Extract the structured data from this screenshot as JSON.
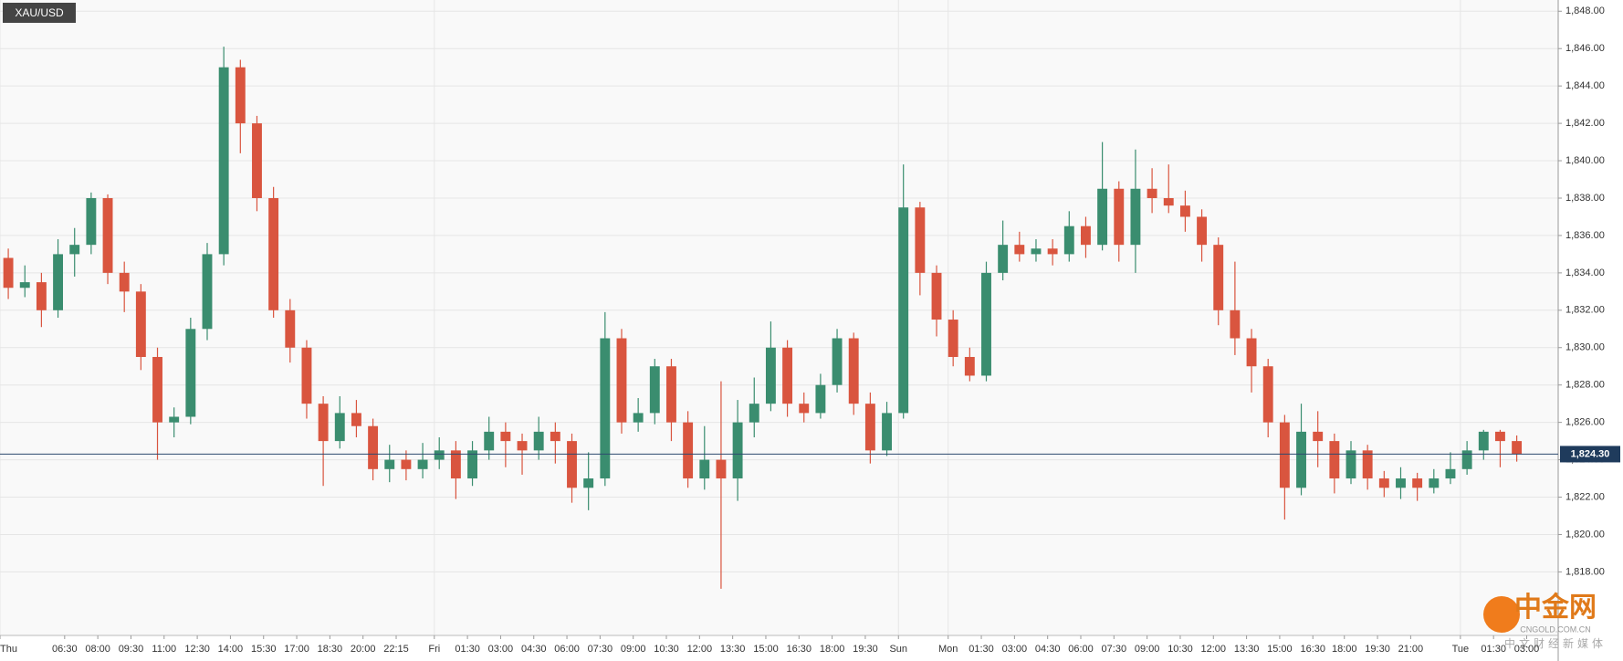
{
  "chart_data": {
    "type": "candlestick",
    "title": "XAU/USD",
    "up_color": "#3a8d6f",
    "down_color": "#d9553f",
    "open": [
      1834.8,
      1833.2,
      1833.5,
      1832,
      1835,
      1835.5,
      1838,
      1834,
      1833,
      1829.5,
      1826,
      1826.3,
      1831,
      1835,
      1845,
      1842,
      1838,
      1832,
      1830,
      1827,
      1825,
      1826.5,
      1825.8,
      1823.5,
      1824,
      1823.5,
      1824,
      1824.5,
      1823,
      1824.5,
      1825.5,
      1825,
      1824.5,
      1825.5,
      1825,
      1822.5,
      1823,
      1830.5,
      1826,
      1826.5,
      1829,
      1826,
      1823,
      1824,
      1823,
      1826,
      1827,
      1830,
      1827,
      1826.5,
      1828,
      1830.5,
      1827,
      1824.5,
      1826.5,
      1837.5,
      1834,
      1831.5,
      1829.5,
      1828.5,
      1834,
      1835.5,
      1835,
      1835.3,
      1835,
      1836.5,
      1835.5,
      1838.5,
      1835.5,
      1838.5,
      1838,
      1837.6,
      1837,
      1835.5,
      1832,
      1830.5,
      1829,
      1826,
      1822.5,
      1825.5,
      1825,
      1823,
      1824.5,
      1823,
      1822.5,
      1823,
      1822.5,
      1823,
      1823.5,
      1824.5,
      1825.5,
      1825
    ],
    "high": [
      1835.3,
      1834.4,
      1834,
      1835.8,
      1836.4,
      1838.3,
      1838.2,
      1834.6,
      1833.4,
      1830,
      1826.8,
      1831.6,
      1835.6,
      1846.1,
      1845.4,
      1842.4,
      1838.6,
      1832.6,
      1830.4,
      1827.4,
      1827.4,
      1827.2,
      1826.2,
      1824.8,
      1824.5,
      1824.9,
      1825.2,
      1825,
      1825,
      1826.3,
      1826,
      1825.4,
      1826.3,
      1826,
      1825.4,
      1824.4,
      1831.9,
      1831,
      1827.3,
      1829.4,
      1829.4,
      1826.6,
      1825.8,
      1828.2,
      1827.2,
      1828.4,
      1831.4,
      1830.4,
      1827.6,
      1828.6,
      1831,
      1830.8,
      1827.6,
      1827.1,
      1839.8,
      1837.8,
      1834.4,
      1832,
      1830,
      1834.6,
      1836.8,
      1836.2,
      1835.8,
      1835.8,
      1837.3,
      1837,
      1841,
      1838.9,
      1840.6,
      1839.6,
      1839.8,
      1838.4,
      1837.4,
      1835.9,
      1834.6,
      1831,
      1829.4,
      1826.4,
      1827,
      1826.6,
      1825.4,
      1825,
      1824.8,
      1823.4,
      1823.6,
      1823.3,
      1823.5,
      1824.4,
      1825,
      1825.6,
      1825.6,
      1825.3
    ],
    "low": [
      1832.6,
      1832.7,
      1831.1,
      1831.6,
      1833.8,
      1835,
      1833.4,
      1831.9,
      1828.8,
      1824,
      1825.2,
      1825.9,
      1830.4,
      1834.4,
      1840.4,
      1837.3,
      1831.6,
      1829.2,
      1826.2,
      1822.6,
      1824.6,
      1825.2,
      1822.9,
      1822.8,
      1822.9,
      1823,
      1823.5,
      1821.9,
      1822.6,
      1824,
      1823.6,
      1823.2,
      1824,
      1823.8,
      1821.7,
      1821.3,
      1822.6,
      1825.4,
      1825.5,
      1825.9,
      1825,
      1822.5,
      1822.4,
      1817.1,
      1821.8,
      1825.2,
      1826.6,
      1826.3,
      1826,
      1826.2,
      1827.6,
      1826.4,
      1823.8,
      1824.2,
      1826.2,
      1832.8,
      1830.6,
      1829,
      1828.2,
      1828.2,
      1833.6,
      1834.6,
      1834.6,
      1834.4,
      1834.6,
      1834.8,
      1835.2,
      1834.6,
      1834,
      1837.2,
      1837.2,
      1836.2,
      1834.6,
      1831.2,
      1829.6,
      1827.6,
      1825.2,
      1820.8,
      1822.1,
      1823.6,
      1822.2,
      1822.7,
      1822.4,
      1822,
      1821.9,
      1821.8,
      1822.2,
      1822.7,
      1823.2,
      1824,
      1823.6,
      1823.9
    ],
    "close": [
      1833.2,
      1833.5,
      1832,
      1835,
      1835.5,
      1838,
      1834,
      1833,
      1829.5,
      1826,
      1826.3,
      1831,
      1835,
      1845,
      1842,
      1838,
      1832,
      1830,
      1827,
      1825,
      1826.5,
      1825.8,
      1823.5,
      1824,
      1823.5,
      1824,
      1824.5,
      1823,
      1824.5,
      1825.5,
      1825,
      1824.5,
      1825.5,
      1825,
      1822.5,
      1823,
      1830.5,
      1826,
      1826.5,
      1829,
      1826,
      1823,
      1824,
      1823,
      1826,
      1827,
      1830,
      1827,
      1826.5,
      1828,
      1830.5,
      1827,
      1824.5,
      1826.5,
      1837.5,
      1834,
      1831.5,
      1829.5,
      1828.5,
      1834,
      1835.5,
      1835,
      1835.3,
      1835,
      1836.5,
      1835.5,
      1838.5,
      1835.5,
      1838.5,
      1838,
      1837.6,
      1837,
      1835.5,
      1832,
      1830.5,
      1829,
      1826,
      1822.5,
      1825.5,
      1825,
      1823,
      1824.5,
      1823,
      1822.5,
      1823,
      1822.5,
      1823,
      1823.5,
      1824.5,
      1825.5,
      1825,
      1824.3
    ],
    "current_price": {
      "value": 1824.3,
      "label": "1,824.30"
    },
    "xlim": [
      0,
      94
    ],
    "xticks": [
      {
        "value": 0,
        "label": "Thu"
      },
      {
        "value": 3.9,
        "label": "06:30"
      },
      {
        "value": 5.9,
        "label": "08:00"
      },
      {
        "value": 7.9,
        "label": "09:30"
      },
      {
        "value": 9.9,
        "label": "11:00"
      },
      {
        "value": 11.9,
        "label": "12:30"
      },
      {
        "value": 13.9,
        "label": "14:00"
      },
      {
        "value": 15.9,
        "label": "15:30"
      },
      {
        "value": 17.9,
        "label": "17:00"
      },
      {
        "value": 19.9,
        "label": "18:30"
      },
      {
        "value": 21.9,
        "label": "20:00"
      },
      {
        "value": 23.9,
        "label": "22:15"
      },
      {
        "value": 26.2,
        "label": "Fri"
      },
      {
        "value": 28.2,
        "label": "01:30"
      },
      {
        "value": 30.2,
        "label": "03:00"
      },
      {
        "value": 32.2,
        "label": "04:30"
      },
      {
        "value": 34.2,
        "label": "06:00"
      },
      {
        "value": 36.2,
        "label": "07:30"
      },
      {
        "value": 38.2,
        "label": "09:00"
      },
      {
        "value": 40.2,
        "label": "10:30"
      },
      {
        "value": 42.2,
        "label": "12:00"
      },
      {
        "value": 44.2,
        "label": "13:30"
      },
      {
        "value": 46.2,
        "label": "15:00"
      },
      {
        "value": 48.2,
        "label": "16:30"
      },
      {
        "value": 50.2,
        "label": "18:00"
      },
      {
        "value": 52.2,
        "label": "19:30"
      },
      {
        "value": 54.2,
        "label": "Sun"
      },
      {
        "value": 57.2,
        "label": "Mon"
      },
      {
        "value": 59.2,
        "label": "01:30"
      },
      {
        "value": 61.2,
        "label": "03:00"
      },
      {
        "value": 63.2,
        "label": "04:30"
      },
      {
        "value": 65.2,
        "label": "06:00"
      },
      {
        "value": 67.2,
        "label": "07:30"
      },
      {
        "value": 69.2,
        "label": "09:00"
      },
      {
        "value": 71.2,
        "label": "10:30"
      },
      {
        "value": 73.2,
        "label": "12:00"
      },
      {
        "value": 75.2,
        "label": "13:30"
      },
      {
        "value": 77.2,
        "label": "15:00"
      },
      {
        "value": 79.2,
        "label": "16:30"
      },
      {
        "value": 81.1,
        "label": "18:00"
      },
      {
        "value": 83.1,
        "label": "19:30"
      },
      {
        "value": 85.1,
        "label": "21:00"
      },
      {
        "value": 88.1,
        "label": "Tue"
      },
      {
        "value": 90.1,
        "label": "01:30"
      },
      {
        "value": 92.1,
        "label": "03:00"
      }
    ],
    "ylim": [
      1814.6,
      1848.6
    ],
    "yticks": [
      {
        "value": 1818,
        "label": "1,818.00"
      },
      {
        "value": 1820,
        "label": "1,820.00"
      },
      {
        "value": 1822,
        "label": "1,822.00"
      },
      {
        "value": 1824,
        "label": "1,824.00"
      },
      {
        "value": 1826,
        "label": "1,826.00"
      },
      {
        "value": 1828,
        "label": "1,828.00"
      },
      {
        "value": 1830,
        "label": "1,830.00"
      },
      {
        "value": 1832,
        "label": "1,832.00"
      },
      {
        "value": 1834,
        "label": "1,834.00"
      },
      {
        "value": 1836,
        "label": "1,836.00"
      },
      {
        "value": 1838,
        "label": "1,838.00"
      },
      {
        "value": 1840,
        "label": "1,840.00"
      },
      {
        "value": 1842,
        "label": "1,842.00"
      },
      {
        "value": 1844,
        "label": "1,844.00"
      },
      {
        "value": 1846,
        "label": "1,846.00"
      },
      {
        "value": 1848,
        "label": "1,848.00"
      }
    ],
    "grid": true
  },
  "watermark": {
    "brand": "中金网",
    "site": "CNGOLD.COM.CN",
    "tagline": "中文财经新媒体"
  }
}
